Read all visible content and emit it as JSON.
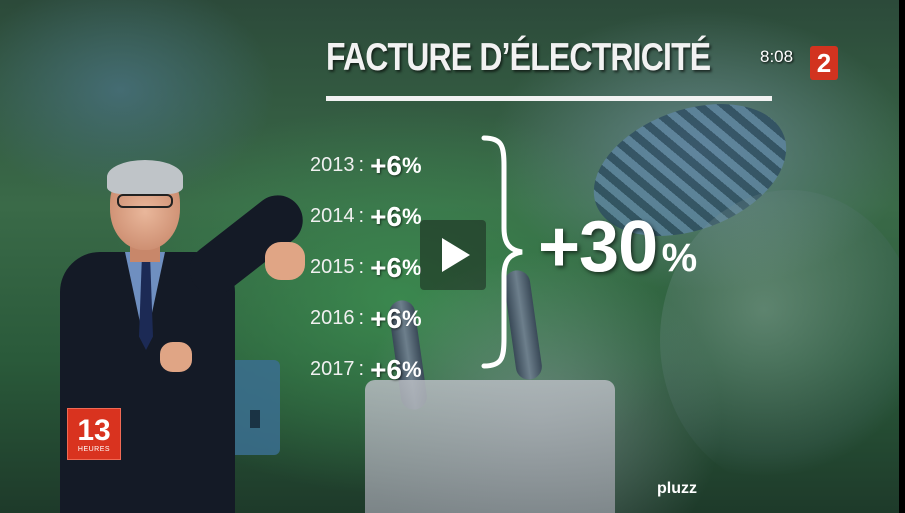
{
  "title": "FACTURE D’ÉLECTRICITÉ",
  "clock": "8:08",
  "channel_logo": "2",
  "rows": [
    {
      "year": "2013",
      "value": "+6",
      "unit": "%"
    },
    {
      "year": "2014",
      "value": "+6",
      "unit": "%"
    },
    {
      "year": "2015",
      "value": "+6",
      "unit": "%"
    },
    {
      "year": "2016",
      "value": "+6",
      "unit": "%"
    },
    {
      "year": "2017",
      "value": "+6",
      "unit": "%"
    }
  ],
  "separator": ":",
  "total": {
    "value": "+30",
    "unit": "%"
  },
  "program_badge": {
    "number": "13",
    "label": "HEURES"
  },
  "player_brand": "pluzz",
  "icons": {
    "play": "play-icon"
  },
  "colors": {
    "channel_red": "#d2331f",
    "text": "#ffffff"
  }
}
